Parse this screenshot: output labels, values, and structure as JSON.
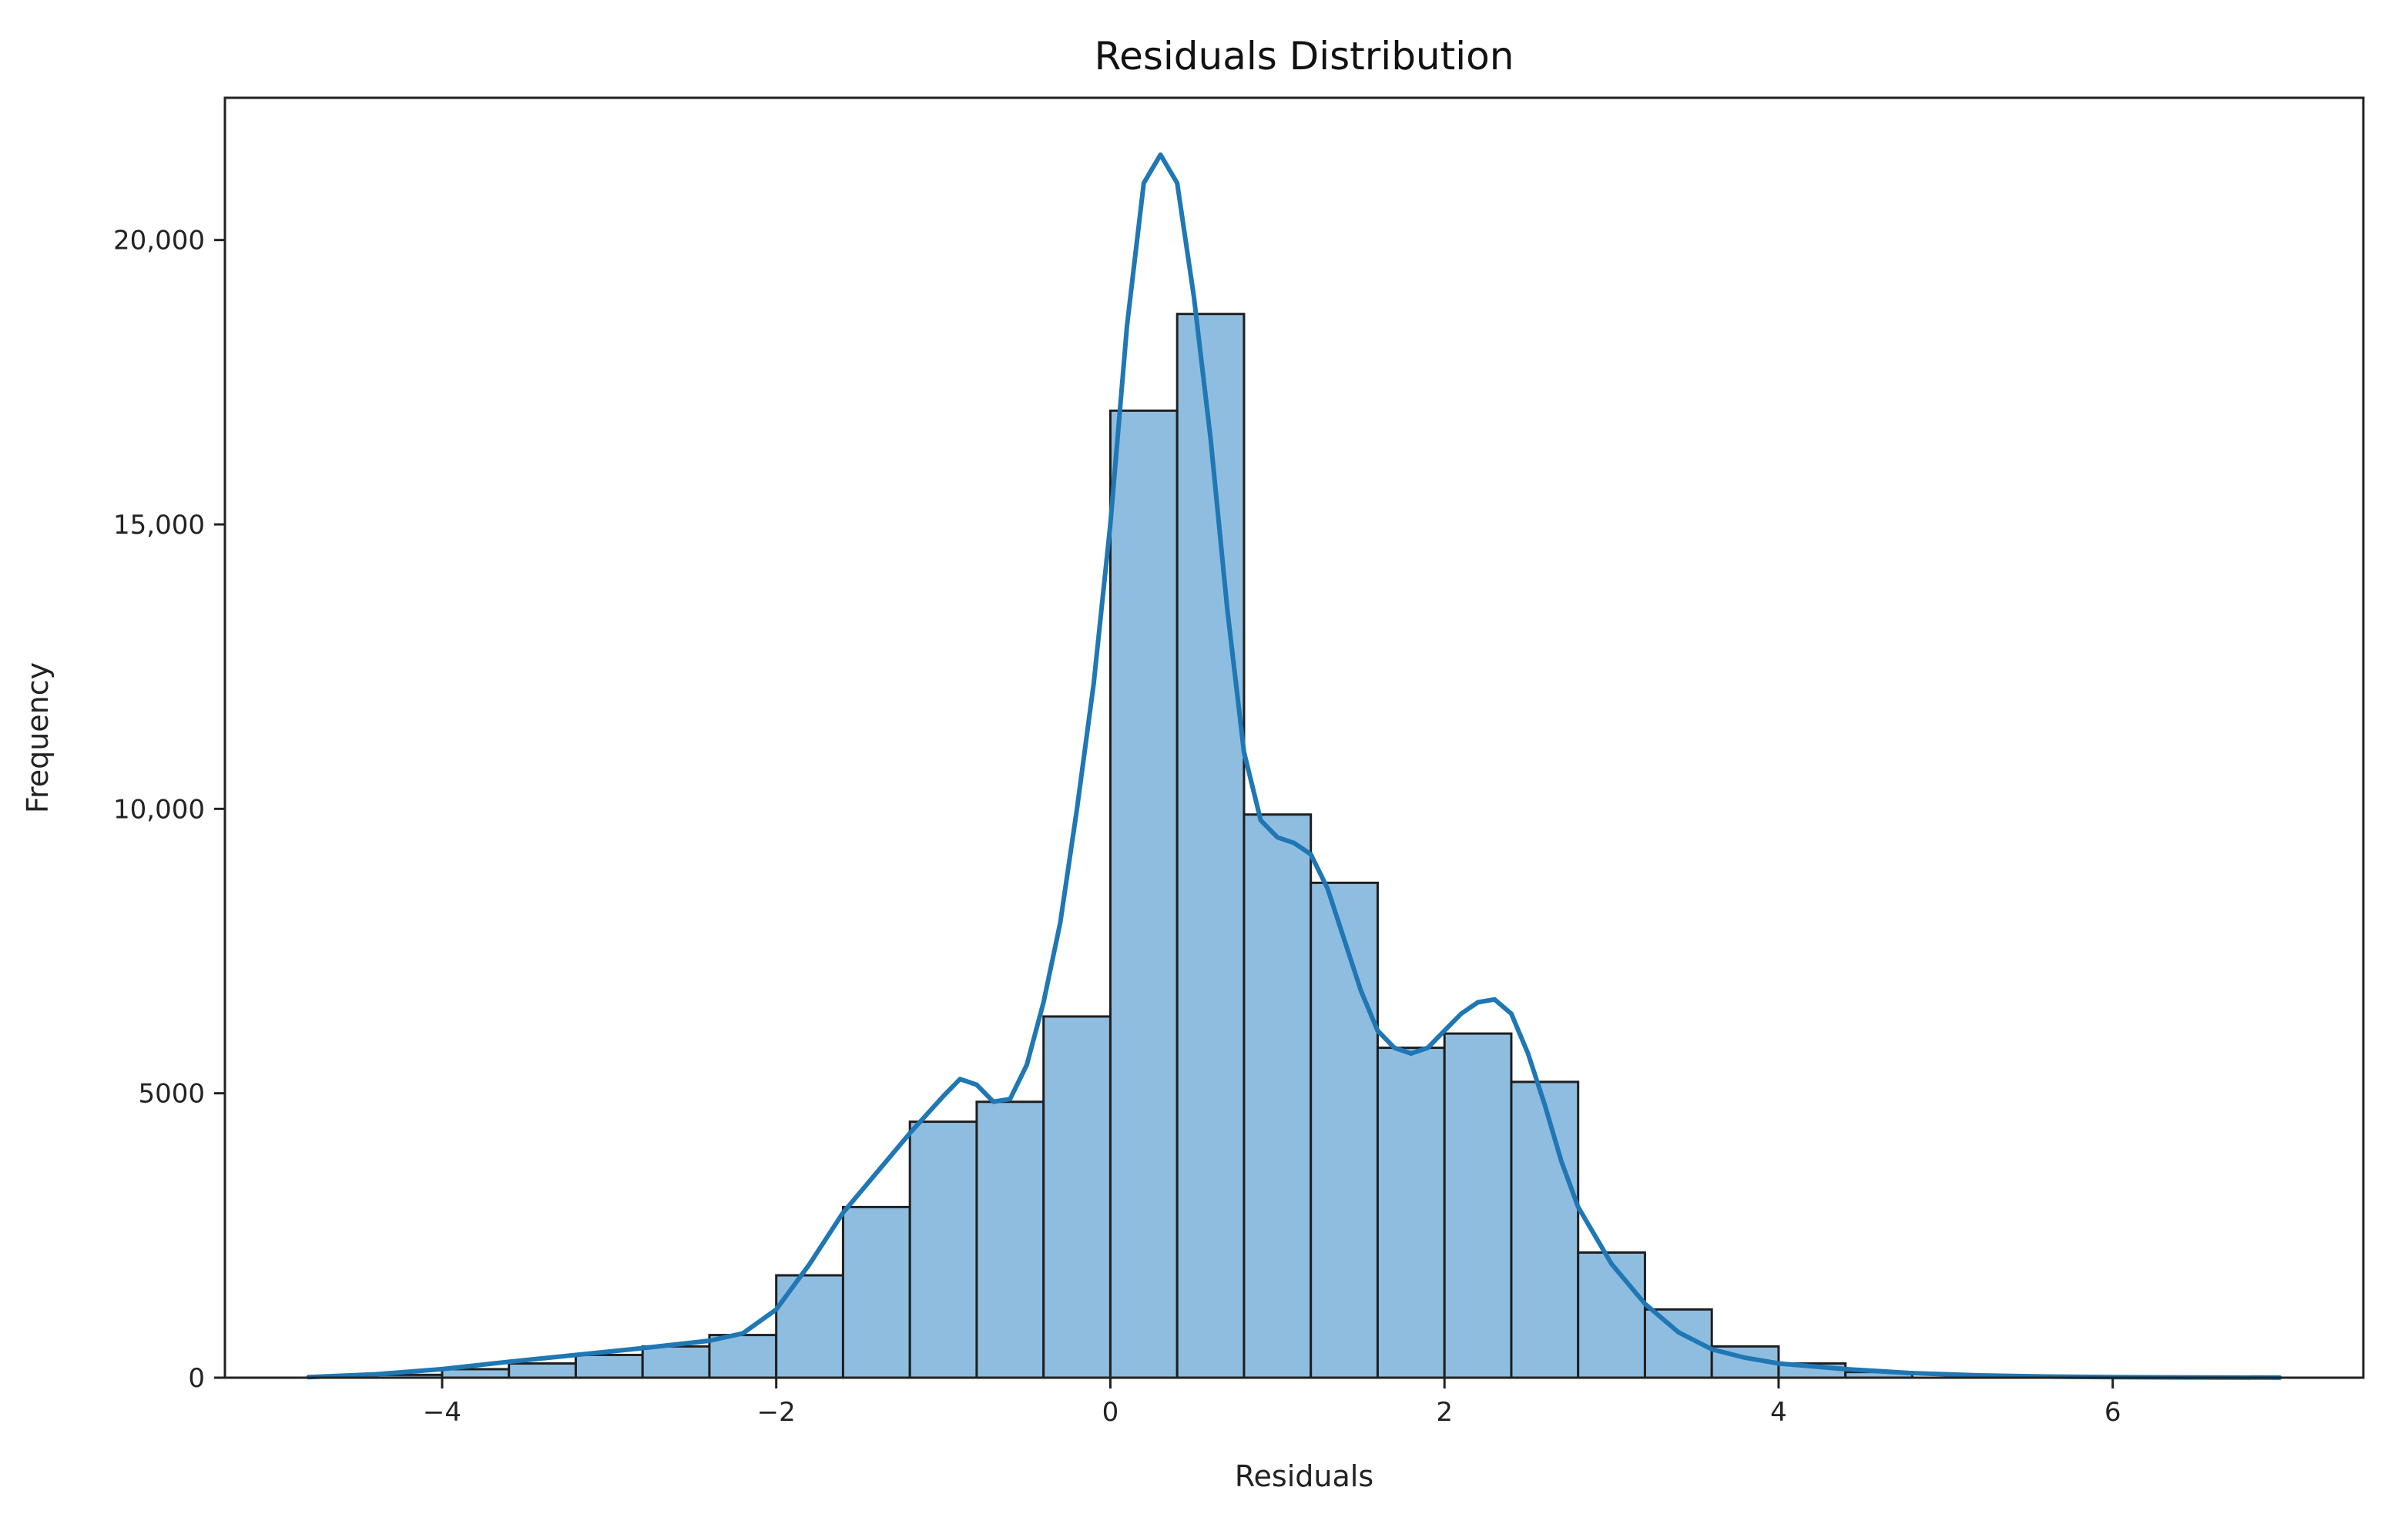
{
  "chart_data": {
    "type": "bar",
    "title": "Residuals Distribution",
    "xlabel": "Residuals",
    "ylabel": "Frequency",
    "xlim": [
      -5.3,
      7.5
    ],
    "ylim": [
      0,
      22500
    ],
    "xticks": [
      -4,
      -2,
      0,
      2,
      4,
      6
    ],
    "xtick_labels": [
      "−4",
      "−2",
      "0",
      "2",
      "4",
      "6"
    ],
    "yticks": [
      0,
      5000,
      10000,
      15000,
      20000
    ],
    "ytick_labels": [
      "0",
      "5000",
      "10,000",
      "15,000",
      "20,000"
    ],
    "grid": false,
    "bar_color": "#8fbde0",
    "bar_edge_color": "#1f1f1f",
    "kde_color": "#1f77b4",
    "bins": [
      {
        "x0": -4.4,
        "x1": -4.0,
        "value": 50
      },
      {
        "x0": -4.0,
        "x1": -3.6,
        "value": 150
      },
      {
        "x0": -3.6,
        "x1": -3.2,
        "value": 250
      },
      {
        "x0": -3.2,
        "x1": -2.8,
        "value": 400
      },
      {
        "x0": -2.8,
        "x1": -2.4,
        "value": 550
      },
      {
        "x0": -2.4,
        "x1": -2.0,
        "value": 750
      },
      {
        "x0": -2.0,
        "x1": -1.6,
        "value": 1800
      },
      {
        "x0": -1.6,
        "x1": -1.2,
        "value": 3000
      },
      {
        "x0": -1.2,
        "x1": -0.8,
        "value": 4500
      },
      {
        "x0": -0.8,
        "x1": -0.4,
        "value": 4850
      },
      {
        "x0": -0.4,
        "x1": 0.0,
        "value": 6350
      },
      {
        "x0": 0.0,
        "x1": 0.4,
        "value": 17000
      },
      {
        "x0": 0.4,
        "x1": 0.8,
        "value": 18700
      },
      {
        "x0": 0.8,
        "x1": 1.2,
        "value": 9900
      },
      {
        "x0": 1.2,
        "x1": 1.6,
        "value": 8700
      },
      {
        "x0": 1.6,
        "x1": 2.0,
        "value": 5800
      },
      {
        "x0": 2.0,
        "x1": 2.4,
        "value": 6050
      },
      {
        "x0": 2.4,
        "x1": 2.8,
        "value": 5200
      },
      {
        "x0": 2.8,
        "x1": 3.2,
        "value": 2200
      },
      {
        "x0": 3.2,
        "x1": 3.6,
        "value": 1200
      },
      {
        "x0": 3.6,
        "x1": 4.0,
        "value": 550
      },
      {
        "x0": 4.0,
        "x1": 4.4,
        "value": 250
      },
      {
        "x0": 4.4,
        "x1": 4.8,
        "value": 100
      }
    ],
    "kde": {
      "x": [
        -4.8,
        -4.4,
        -4.0,
        -3.6,
        -3.2,
        -2.8,
        -2.4,
        -2.2,
        -2.0,
        -1.8,
        -1.6,
        -1.4,
        -1.2,
        -1.0,
        -0.9,
        -0.8,
        -0.7,
        -0.6,
        -0.5,
        -0.4,
        -0.3,
        -0.2,
        -0.1,
        0.0,
        0.1,
        0.2,
        0.3,
        0.4,
        0.5,
        0.6,
        0.7,
        0.8,
        0.9,
        1.0,
        1.1,
        1.2,
        1.3,
        1.4,
        1.5,
        1.6,
        1.7,
        1.8,
        1.9,
        2.0,
        2.1,
        2.2,
        2.3,
        2.4,
        2.5,
        2.6,
        2.7,
        2.8,
        3.0,
        3.2,
        3.4,
        3.6,
        3.8,
        4.0,
        4.4,
        4.8,
        5.2,
        5.6,
        6.0,
        6.4,
        7.0
      ],
      "y": [
        10,
        60,
        150,
        280,
        400,
        520,
        650,
        780,
        1200,
        2000,
        2900,
        3600,
        4300,
        4950,
        5250,
        5150,
        4850,
        4900,
        5500,
        6600,
        8000,
        10000,
        12200,
        15000,
        18500,
        21000,
        21500,
        21000,
        19000,
        16500,
        13500,
        11000,
        9800,
        9500,
        9400,
        9200,
        8600,
        7700,
        6800,
        6100,
        5800,
        5700,
        5800,
        6100,
        6400,
        6600,
        6650,
        6400,
        5700,
        4800,
        3800,
        3000,
        2000,
        1300,
        800,
        500,
        350,
        250,
        150,
        80,
        40,
        20,
        10,
        5,
        2
      ]
    }
  }
}
